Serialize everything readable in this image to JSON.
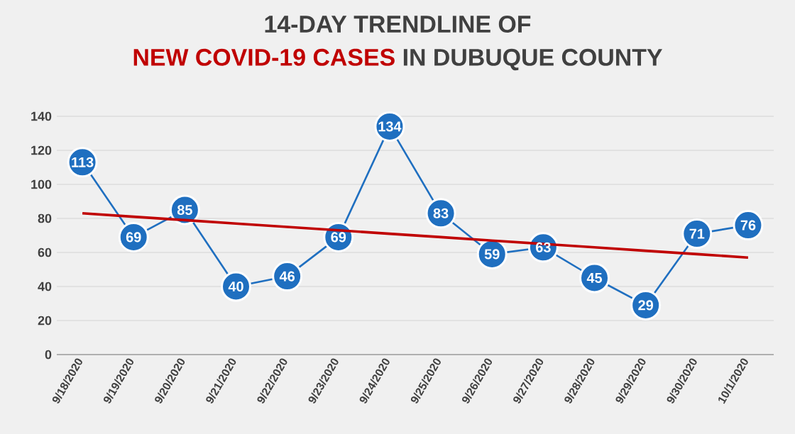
{
  "chart_data": {
    "type": "line",
    "title": "14-DAY TRENDLINE OF",
    "subtitle": "**NEW COVID-19 CASES** IN DUBUQUE COUNTY",
    "categories": [
      "9/18/2020",
      "9/19/2020",
      "9/20/2020",
      "9/21/2020",
      "9/22/2020",
      "9/23/2020",
      "9/24/2020",
      "9/25/2020",
      "9/26/2020",
      "9/27/2020",
      "9/28/2020",
      "9/29/2020",
      "9/30/2020",
      "10/1/2020"
    ],
    "series": [
      {
        "color": "#1f6fc0",
        "marker": "circle",
        "data_labels": true,
        "values": [
          113,
          69,
          85,
          40,
          46,
          69,
          134,
          83,
          59,
          63,
          45,
          29,
          71,
          76
        ]
      },
      {
        "color": "#c00000",
        "marker": "none",
        "values": [
          83,
          81,
          79,
          77,
          75,
          73,
          71,
          69,
          67,
          65,
          63,
          61,
          59,
          57
        ]
      }
    ],
    "ylim": [
      0,
      140
    ],
    "yticks": [
      0,
      20,
      40,
      60,
      80,
      100,
      120,
      140
    ],
    "grid": "y"
  }
}
